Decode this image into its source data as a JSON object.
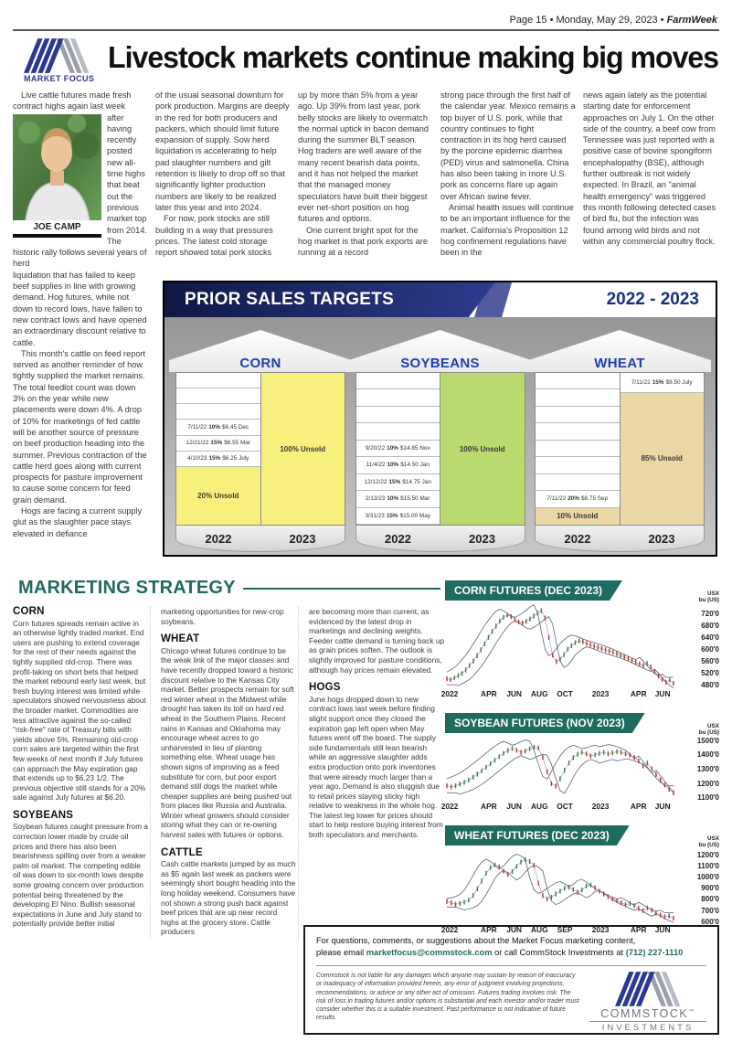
{
  "header": {
    "page_info": "Page 15 • Monday, May 29, 2023 • ",
    "brand": "FarmWeek"
  },
  "masthead": {
    "logo_label": "MARKET FOCUS",
    "headline": "Livestock markets continue making big moves"
  },
  "article": {
    "photo_caption": "JOE CAMP",
    "col1_p1": "Live cattle futures made fresh contract highs again last week",
    "col1_p2": "after having recently posted new all-time highs that beat out the previous market top from 2014. The historic rally follows several years of herd",
    "col1_p3": "liquidation that has failed to keep beef supplies in line with growing demand. Hog futures, while not down to record lows, have fallen to new contract lows and have opened an extraordinary discount relative to cattle.",
    "col1_p4": "This month's cattle on feed report served as another reminder of how tightly supplied the market remains. The total feedlot count was down 3% on the year while new placements were down 4%. A drop of 10% for marketings of fed cattle will be another source of pressure on beef production heading into the summer. Previous contraction of the cattle herd goes along with current prospects for pasture improvement to cause some concern for feed grain demand.",
    "col1_p5": "Hogs are facing a current supply glut as the slaughter pace stays elevated in defiance",
    "col2_p1": "of the usual seasonal downturn for pork production. Margins are deeply in the red for both producers and packers, which should limit future expansion of supply. Sow herd liquidation is accelerating to help pad slaughter numbers and gilt retention is likely to drop off so that significantly lighter production numbers are likely to be realized later this year and into 2024.",
    "col2_p2": "For now, pork stocks are still building in a way that pressures prices. The latest cold storage report showed total pork stocks",
    "col3_p1": "up by more than 5% from a year ago. Up 39% from last year, pork belly stocks are likely to overmatch the normal uptick in bacon demand during the summer BLT season. Hog traders are well aware of the many recent bearish data points, and it has not helped the market that the managed money speculators have built their biggest ever net-short position on hog futures and options.",
    "col3_p2": "One current bright spot for the hog market is that pork exports are running at a record",
    "col4_p1": "strong pace through the first half of the calendar year. Mexico remains a top buyer of U.S. pork, while that country continues to fight contraction in its hog herd caused by the porcine epidemic diarrhea (PED) virus and salmonella. China has also been taking in more U.S. pork as concerns flare up again over African swine fever.",
    "col4_p2": "Animal health issues will continue to be an important influence for the market. California's Proposition 12 hog confinement regulations have been in the",
    "col5_p1": "news again lately as the potential starting date for enforcement approaches on July 1. On the other side of the country, a beef cow from Tennessee was just reported with a positive case of bovine spongiform encephalopathy (BSE), although further outbreak is not widely expected. In Brazil, an \"animal health emergency\" was triggered this month following detected cases of bird flu, but the infection was found among wild birds and not within any commercial poultry flock."
  },
  "sales_panel": {
    "title": "PRIOR SALES TARGETS",
    "season": "2022 - 2023",
    "year_left": "2022",
    "year_right": "2023",
    "colors": {
      "corn": "#f8f07c",
      "soybeans": "#b9da6e",
      "wheat": "#ecd8a6",
      "header_navy": "#1b255e",
      "accent_blue": "#1d3fae"
    },
    "corn": {
      "name": "CORN",
      "entries": [
        {
          "date": "7/11/22",
          "pct": "10%",
          "rest": "$6.45 Dec"
        },
        {
          "date": "12/21/22",
          "pct": "15%",
          "rest": "$6.55 Mar"
        },
        {
          "date": "4/10/23",
          "pct": "15%",
          "rest": "$6.25 July"
        }
      ],
      "unsold_2022": "20% Unsold",
      "unsold_2023": "100% Unsold"
    },
    "soybeans": {
      "name": "SOYBEANS",
      "entries": [
        {
          "date": "9/20/22",
          "pct": "10%",
          "rest": "$14.85 Nov"
        },
        {
          "date": "11/4/22",
          "pct": "10%",
          "rest": "$14.50 Jan"
        },
        {
          "date": "12/12/22",
          "pct": "15%",
          "rest": "$14.75 Jan"
        },
        {
          "date": "2/13/23",
          "pct": "10%",
          "rest": "$15.50 Mar"
        },
        {
          "date": "3/31/23",
          "pct": "15%",
          "rest": "$15.00 May"
        }
      ],
      "unsold_2023": "100% Unsold"
    },
    "wheat": {
      "name": "WHEAT",
      "entries": [
        {
          "date": "7/11/22",
          "pct": "20%",
          "rest": "$8.75 Sep"
        }
      ],
      "entry_2023": {
        "date": "7/11/22",
        "pct": "15%",
        "rest": "$9.50 July"
      },
      "unsold_2022": "10% Unsold",
      "unsold_2023": "85% Unsold"
    }
  },
  "strategy": {
    "title": "MARKETING STRATEGY",
    "col1": {
      "h1": "CORN",
      "p1": "Corn futures spreads remain active in an otherwise lightly traded market. End users are pushing to extend coverage for the rest of their needs against the tightly supplied old-crop. There was profit-taking on short bets that helped the market rebound early last week, but fresh buying interest was limited while speculators showed nervousness about the broader market. Commodities are less attractive against the so-called \"risk-free\" rate of Treasury bills with yields above 5%. Remaining old-crop corn sales are targeted within the first few weeks of next month if July futures can approach the May expiration gap that extends up to $6.23 1/2. The previous objective still stands for a 20% sale against July futures at $6.20.",
      "h2": "SOYBEANS",
      "p2": "Soybean futures caught pressure from a correction lower made by crude oil prices and there has also been bearishness spilling over from a weaker palm oil market. The competing edible oil was down to six-month lows despite some growing concern over production potential being threatened by the developing El Nino. Bullish seasonal expectations in June and July stand to potentially provide better initial"
    },
    "col2": {
      "p0": "marketing opportunities for new-crop soybeans.",
      "h1": "WHEAT",
      "p1": "Chicago wheat futures continue to be the weak link of the major classes and have recently dropped toward a historic discount relative to the Kansas City market. Better prospects remain for soft red winter wheat in the Midwest while drought has taken its toll on hard red wheat in the Southern Plains. Recent rains in Kansas and Oklahoma may encourage wheat acres to go unharvested in lieu of planting something else. Wheat usage has shown signs of improving as a feed substitute for corn, but poor export demand still dogs the market while cheaper supplies are being pushed out from places like Russia and Australia. Winter wheat growers should consider storing what they can or re-owning harvest sales with futures or options.",
      "h2": "CATTLE",
      "p2": "Cash cattle markets jumped by as much as $5 again last week as packers were seemingly short bought heading into the long holiday weekend. Consumers have not shown a strong push back against beef prices that are up near record highs at the grocery store. Cattle producers"
    },
    "col3": {
      "p0": "are becoming more than current, as evidenced by the latest drop in marketings and declining weights. Feeder cattle demand is turning back up as grain prices soften. The outlook is slightly improved for pasture conditions, although hay prices remain elevated.",
      "h1": "HOGS",
      "p1": "June hogs dropped down to new contract lows last week before finding slight support once they closed the expiration gap left open when May futures went off the board. The supply side fundamentals still lean bearish while an aggressive slaughter adds extra production onto pork inventories that were already much larger than a year ago. Demand is also sluggish due to retail prices staying sticky high relative to weakness in the whole hog. The latest leg lower for prices should start to help restore buying interest from both speculators and merchants."
    }
  },
  "chart_style": {
    "up": "#3c7a4e",
    "down": "#b23a35",
    "channel": "#5a6478",
    "connector": "#9a9a9a",
    "banner": "#206b60"
  },
  "chart_data": [
    {
      "type": "line",
      "title": "CORN FUTURES (DEC 2023)",
      "unit": "USX\nbu (US)",
      "y_ticks": [
        "720'0",
        "680'0",
        "640'0",
        "600'0",
        "560'0",
        "520'0",
        "480'0"
      ],
      "y_tick_values": [
        720,
        680,
        640,
        600,
        560,
        520,
        480
      ],
      "x_labels": [
        "2022",
        "APR",
        "JUN",
        "AUG",
        "OCT",
        "2023",
        "APR",
        "JUN"
      ],
      "ylim": [
        468,
        752
      ],
      "channel_offset": 20,
      "price": [
        500,
        497,
        503,
        510,
        518,
        530,
        545,
        560,
        578,
        598,
        618,
        640,
        660,
        678,
        695,
        708,
        715,
        710,
        700,
        692,
        688,
        694,
        702,
        712,
        722,
        730,
        705,
        640,
        580,
        558,
        566,
        582,
        600,
        612,
        622,
        628,
        625,
        620,
        615,
        610,
        606,
        602,
        598,
        594,
        590,
        585,
        580,
        574,
        568,
        562,
        556,
        550,
        545,
        552,
        540,
        525,
        510,
        498,
        488,
        496,
        485
      ]
    },
    {
      "type": "line",
      "title": "SOYBEAN FUTURES (NOV 2023)",
      "unit": "USX\nbu (US)",
      "y_ticks": [
        "1500'0",
        "1400'0",
        "1300'0",
        "1200'0",
        "1100'0"
      ],
      "y_tick_values": [
        1500,
        1400,
        1300,
        1200,
        1100
      ],
      "x_labels": [
        "2022",
        "APR",
        "JUN",
        "AUG",
        "OCT",
        "2023",
        "APR",
        "JUN"
      ],
      "ylim": [
        1075,
        1525
      ],
      "channel_offset": 50,
      "price": [
        1180,
        1172,
        1180,
        1192,
        1205,
        1220,
        1240,
        1262,
        1285,
        1310,
        1335,
        1360,
        1385,
        1408,
        1428,
        1442,
        1430,
        1415,
        1425,
        1440,
        1452,
        1445,
        1380,
        1280,
        1195,
        1178,
        1230,
        1290,
        1340,
        1378,
        1402,
        1415,
        1405,
        1390,
        1398,
        1408,
        1415,
        1405,
        1412,
        1420,
        1415,
        1405,
        1395,
        1380,
        1355,
        1320,
        1340,
        1300,
        1260,
        1220,
        1185,
        1155,
        1130
      ]
    },
    {
      "type": "line",
      "title": "WHEAT FUTURES (DEC 2023)",
      "unit": "USX\nbu (US)",
      "y_ticks": [
        "1200'0",
        "1100'0",
        "1000'0",
        "900'0",
        "800'0",
        "700'0",
        "600'0"
      ],
      "y_tick_values": [
        1200,
        1100,
        1000,
        900,
        800,
        700,
        600
      ],
      "x_labels": [
        "2022",
        "APR",
        "JUN",
        "AUG",
        "SEP",
        "2023",
        "APR",
        "JUN"
      ],
      "ylim": [
        575,
        1245
      ],
      "channel_offset": 50,
      "price": [
        778,
        765,
        752,
        760,
        772,
        790,
        830,
        890,
        960,
        1030,
        1080,
        1105,
        1085,
        1050,
        1020,
        1045,
        1090,
        1130,
        1150,
        1135,
        1100,
        940,
        830,
        800,
        815,
        845,
        870,
        895,
        905,
        885,
        860,
        880,
        915,
        925,
        900,
        870,
        845,
        820,
        800,
        785,
        765,
        748,
        760,
        740,
        715,
        695,
        720,
        700,
        672,
        655,
        640,
        648,
        628
      ]
    }
  ],
  "footer": {
    "line1": "For questions, comments, or suggestions about the Market Focus marketing content,",
    "line2_prefix": "please email ",
    "email": "marketfocus@commstock.com",
    "line2_mid": " or call CommStock Investments at ",
    "phone": "(712) 227-1110",
    "disclaimer": "Commstock is not liable for any damages which anyone may sustain by reason of inaccuracy or inadequacy of information provided herein, any error of judgment involving projections, recommendations, or advice or any other act of omission. Futures trading involves risk. The risk of loss in trading futures and/or options is substantial and each investor and/or trader must consider whether this is a suitable investment. Past performance is not indicative of future results.",
    "logo_name": "COMMSTOCK",
    "logo_tm": "™",
    "logo_sub": "INVESTMENTS"
  }
}
